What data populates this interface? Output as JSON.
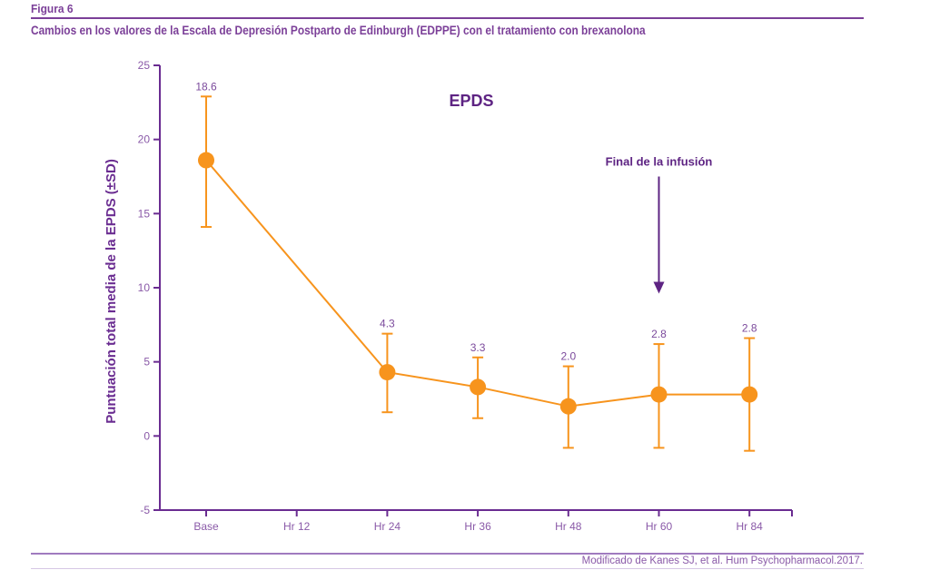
{
  "figure": {
    "label": "Figura 6",
    "title": "Cambios en los valores de la Escala de Depresión Postparto de Edinburgh (EDPPE) con el tratamiento con brexanolona",
    "source": "Modificado de Kanes SJ, et al. Hum Psychopharmacol.2017."
  },
  "colors": {
    "accent": "#7b3f98",
    "axis": "#6a2c91",
    "series": "#f7941d",
    "arrow": "#5e2483"
  },
  "chart_data": {
    "type": "line",
    "title": "EPDS",
    "xlabel": "",
    "ylabel": "Puntuación total media de la EPDS (±SD)",
    "categories": [
      "Base",
      "Hr 12",
      "Hr 24",
      "Hr 36",
      "Hr 48",
      "Hr 60",
      "Hr 84"
    ],
    "ylim": [
      -5,
      25
    ],
    "yticks": [
      -5,
      0,
      5,
      10,
      15,
      20,
      25
    ],
    "grid": false,
    "series": [
      {
        "name": "EPDS",
        "points": [
          {
            "category": "Base",
            "value": 18.6,
            "label": "18.6",
            "err_low": 14.1,
            "err_high": 22.9
          },
          {
            "category": "Hr 24",
            "value": 4.3,
            "label": "4.3",
            "err_low": 1.6,
            "err_high": 6.9
          },
          {
            "category": "Hr 36",
            "value": 3.3,
            "label": "3.3",
            "err_low": 1.2,
            "err_high": 5.3
          },
          {
            "category": "Hr 48",
            "value": 2.0,
            "label": "2.0",
            "err_low": -0.8,
            "err_high": 4.7
          },
          {
            "category": "Hr 60",
            "value": 2.8,
            "label": "2.8",
            "err_low": -0.8,
            "err_high": 6.2
          },
          {
            "category": "Hr 84",
            "value": 2.8,
            "label": "2.8",
            "err_low": -1.0,
            "err_high": 6.6
          }
        ]
      }
    ],
    "annotations": [
      {
        "text": "Final de la infusión",
        "category": "Hr 60",
        "arrow_from": 17.5,
        "arrow_to": 9.6
      }
    ]
  }
}
